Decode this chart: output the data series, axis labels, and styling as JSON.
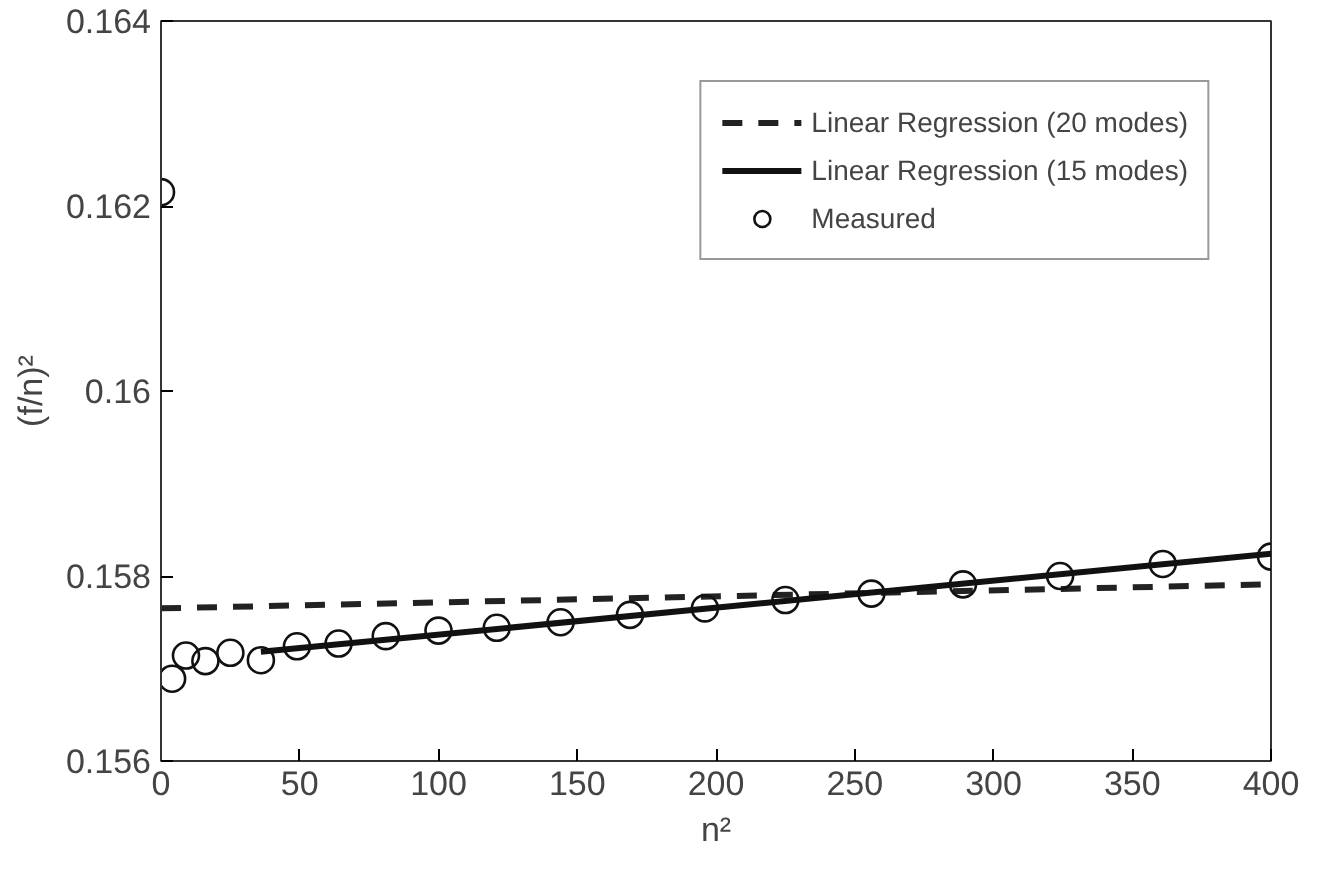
{
  "chart_data": {
    "type": "line",
    "xlabel": "n²",
    "ylabel": "(f/n)²",
    "xlim": [
      0,
      400
    ],
    "ylim": [
      0.156,
      0.164
    ],
    "xticks": [
      0,
      50,
      100,
      150,
      200,
      250,
      300,
      350,
      400
    ],
    "yticks": [
      0.156,
      0.158,
      0.16,
      0.162,
      0.164
    ],
    "grid": false,
    "legend": "top right",
    "series": [
      {
        "name": "Linear Regression (20 modes)",
        "line_style": "dashed",
        "color": "#222222",
        "x": [
          0,
          400
        ],
        "values": [
          0.15765,
          0.15791
        ]
      },
      {
        "name": "Linear Regression (15 modes)",
        "line_style": "solid",
        "color": "#111111",
        "x": [
          36,
          400
        ],
        "values": [
          0.15718,
          0.15824
        ]
      },
      {
        "name": "Measured",
        "type": "scatter",
        "marker": "circle",
        "color": "#111111",
        "x": [
          0,
          4,
          9,
          16,
          25,
          36,
          49,
          64,
          81,
          100,
          121,
          144,
          169,
          196,
          225,
          256,
          289,
          324,
          361,
          400
        ],
        "values": [
          0.16215,
          0.15689,
          0.15714,
          0.15708,
          0.15717,
          0.15709,
          0.15724,
          0.15727,
          0.15735,
          0.15741,
          0.15744,
          0.1575,
          0.15758,
          0.15765,
          0.15774,
          0.15781,
          0.15791,
          0.158,
          0.15813,
          0.15821
        ]
      }
    ]
  }
}
